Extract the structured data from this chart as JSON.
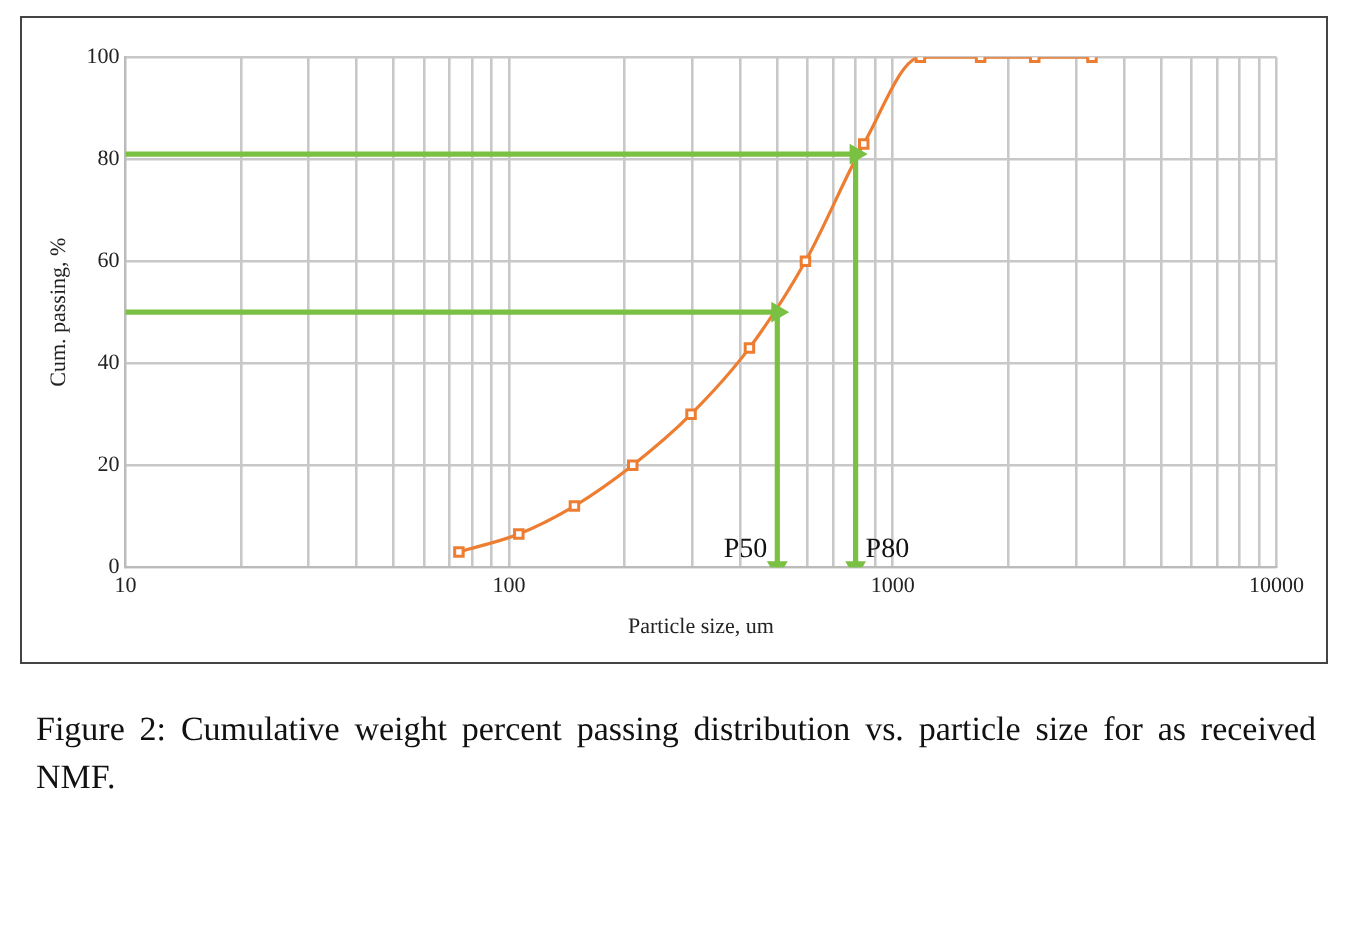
{
  "chart_data": {
    "type": "line",
    "title": "Figure 2: Cumulative weight percent passing distribution vs. particle size for as received NMF.",
    "xlabel": "Particle size, um",
    "ylabel": "Cum. passing, %",
    "series": [
      {
        "color": "#ed7d31",
        "x": [
          74,
          106,
          148,
          210,
          298,
          423,
          592,
          840,
          1180,
          1694,
          2344,
          3304
        ],
        "values": [
          3,
          6.5,
          12,
          20,
          30,
          43,
          60,
          83,
          100,
          100,
          100,
          100
        ]
      },
      {
        "color": "#7ac143",
        "x": [
          10,
          500,
          500
        ],
        "values": [
          50,
          50,
          0
        ],
        "marker": "triangle"
      },
      {
        "color": "#7ac143",
        "x": [
          10,
          800,
          800
        ],
        "values": [
          81,
          81,
          0
        ],
        "marker": "triangle"
      }
    ],
    "log": "x",
    "xlim": [
      10,
      10000
    ],
    "ylim": [
      0,
      100
    ],
    "xticks": [
      10,
      {
        "value": 20,
        "label": null
      },
      {
        "value": 30,
        "label": null
      },
      {
        "value": 40,
        "label": null
      },
      {
        "value": 50,
        "label": null
      },
      {
        "value": 60,
        "label": null
      },
      {
        "value": 70,
        "label": null
      },
      {
        "value": 80,
        "label": null
      },
      {
        "value": 90,
        "label": null
      },
      100,
      {
        "value": 200,
        "label": null
      },
      {
        "value": 300,
        "label": null
      },
      {
        "value": 400,
        "label": null
      },
      {
        "value": 500,
        "label": null
      },
      {
        "value": 600,
        "label": null
      },
      {
        "value": 700,
        "label": null
      },
      {
        "value": 800,
        "label": null
      },
      {
        "value": 900,
        "label": null
      },
      1000,
      {
        "value": 2000,
        "label": null
      },
      {
        "value": 3000,
        "label": null
      },
      {
        "value": 4000,
        "label": null
      },
      {
        "value": 5000,
        "label": null
      },
      {
        "value": 6000,
        "label": null
      },
      {
        "value": 7000,
        "label": null
      },
      {
        "value": 8000,
        "label": null
      },
      {
        "value": 9000,
        "label": null
      },
      10000
    ],
    "yticks": [
      0,
      20,
      40,
      60,
      80,
      100
    ],
    "grid": true,
    "marker": "square",
    "legend": false,
    "annotations": [
      {
        "text": "P50",
        "x": 500,
        "y": 0
      },
      {
        "text": "P80",
        "x": 800,
        "y": 0
      }
    ]
  }
}
